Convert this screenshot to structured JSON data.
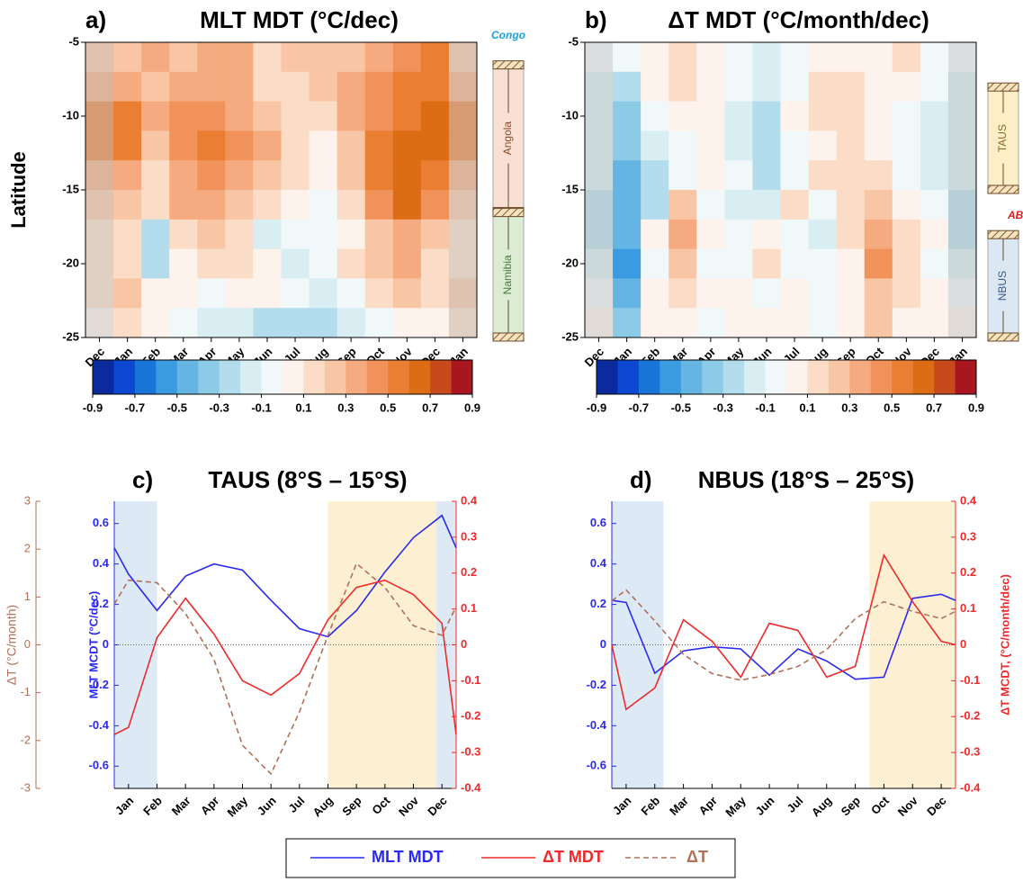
{
  "chart_data": [
    {
      "type": "heatmap",
      "panel_label": "a)",
      "title": "MLT MDT (°C/dec)",
      "y_label": "Latitude",
      "categories": [
        "Dec",
        "Jan",
        "Feb",
        "Mar",
        "Apr",
        "May",
        "Jun",
        "Jul",
        "Aug",
        "Sep",
        "Oct",
        "Nov",
        "Dec",
        "Jan"
      ],
      "y": [
        -6,
        -8,
        -10,
        -12,
        -14,
        -16,
        -18,
        -20,
        -22,
        -24
      ],
      "z": [
        [
          0.2,
          0.2,
          0.3,
          0.2,
          0.3,
          0.3,
          0.1,
          0.2,
          0.2,
          0.2,
          0.3,
          0.4,
          0.5,
          0.2
        ],
        [
          0.3,
          0.3,
          0.2,
          0.3,
          0.3,
          0.3,
          0.1,
          0.1,
          0.2,
          0.3,
          0.4,
          0.5,
          0.5,
          0.3
        ],
        [
          0.5,
          0.5,
          0.3,
          0.4,
          0.4,
          0.3,
          0.2,
          0.1,
          0.1,
          0.3,
          0.4,
          0.5,
          0.6,
          0.5
        ],
        [
          0.5,
          0.5,
          0.2,
          0.4,
          0.5,
          0.4,
          0.3,
          0.1,
          0.0,
          0.2,
          0.5,
          0.6,
          0.6,
          0.5
        ],
        [
          0.3,
          0.3,
          0.1,
          0.3,
          0.4,
          0.3,
          0.2,
          0.1,
          0.0,
          0.2,
          0.5,
          0.6,
          0.5,
          0.3
        ],
        [
          0.2,
          0.2,
          0.1,
          0.3,
          0.3,
          0.2,
          0.1,
          0.0,
          -0.1,
          0.1,
          0.4,
          0.6,
          0.4,
          0.2
        ],
        [
          0.1,
          0.1,
          -0.3,
          0.1,
          0.2,
          0.1,
          -0.2,
          -0.1,
          -0.1,
          0.0,
          0.2,
          0.3,
          0.2,
          0.1
        ],
        [
          0.1,
          0.1,
          -0.3,
          0.0,
          0.1,
          0.1,
          0.0,
          -0.2,
          -0.1,
          0.1,
          0.2,
          0.3,
          0.1,
          0.1
        ],
        [
          0.1,
          0.2,
          0.0,
          0.0,
          -0.1,
          0.0,
          0.0,
          -0.1,
          -0.2,
          -0.1,
          0.1,
          0.2,
          0.1,
          0.2
        ],
        [
          0.0,
          0.1,
          0.0,
          -0.1,
          -0.2,
          -0.2,
          -0.3,
          -0.3,
          -0.3,
          -0.2,
          -0.1,
          0.0,
          0.0,
          0.1
        ]
      ],
      "ylim": [
        -25,
        -5
      ],
      "yticks": [
        -5,
        -10,
        -15,
        -20,
        -25
      ],
      "colorbar": {
        "lim": [
          -0.9,
          0.9
        ],
        "ticks": [
          -0.9,
          -0.7,
          -0.5,
          -0.3,
          -0.1,
          0.1,
          0.3,
          0.5,
          0.7,
          0.9
        ],
        "colors": [
          "#0a2a9e",
          "#0b47d1",
          "#1a75d8",
          "#3a9be0",
          "#64b5e4",
          "#8ccbe6",
          "#b3dcec",
          "#d8eef3",
          "#f1f8fa",
          "#fdf3ec",
          "#fbdcc6",
          "#f9c6a5",
          "#f5ab7f",
          "#f0925a",
          "#ea7e33",
          "#dd6d14",
          "#c7491c",
          "#a8171f"
        ]
      },
      "annotations": [
        "Congo"
      ],
      "regions": [
        {
          "name": "Angola",
          "lat": [
            -6.5,
            -16.5
          ],
          "color": "#f9e0d4",
          "text_color": "#8a4a2a"
        },
        {
          "name": "Namibia",
          "lat": [
            -16.5,
            -25
          ],
          "color": "#dcebd3",
          "text_color": "#4a7a3a"
        }
      ]
    },
    {
      "type": "heatmap",
      "panel_label": "b)",
      "title": "ΔT MDT (°C/month/dec)",
      "categories": [
        "Dec",
        "Jan",
        "Feb",
        "Mar",
        "Apr",
        "May",
        "Jun",
        "Jul",
        "Aug",
        "Sep",
        "Oct",
        "Nov",
        "Dec",
        "Jan"
      ],
      "y": [
        -6,
        -8,
        -10,
        -12,
        -14,
        -16,
        -18,
        -20,
        -22,
        -24
      ],
      "z": [
        [
          -0.1,
          -0.1,
          0.0,
          0.1,
          0.0,
          -0.1,
          -0.2,
          -0.1,
          0.0,
          0.0,
          0.0,
          0.1,
          -0.1,
          -0.1
        ],
        [
          -0.2,
          -0.3,
          0.0,
          0.1,
          0.0,
          -0.1,
          -0.2,
          -0.1,
          0.1,
          0.1,
          0.0,
          0.0,
          -0.1,
          -0.2
        ],
        [
          -0.2,
          -0.4,
          -0.1,
          0.0,
          0.0,
          -0.2,
          -0.3,
          0.0,
          0.1,
          0.1,
          0.0,
          -0.1,
          -0.2,
          -0.2
        ],
        [
          -0.2,
          -0.4,
          -0.2,
          -0.1,
          0.0,
          -0.2,
          -0.3,
          -0.1,
          0.0,
          0.1,
          0.0,
          -0.1,
          -0.2,
          -0.2
        ],
        [
          -0.2,
          -0.5,
          -0.3,
          -0.1,
          0.0,
          -0.1,
          -0.3,
          -0.1,
          0.1,
          0.1,
          0.1,
          -0.1,
          -0.2,
          -0.2
        ],
        [
          -0.3,
          -0.5,
          -0.3,
          0.2,
          -0.1,
          -0.2,
          -0.2,
          0.1,
          -0.1,
          0.1,
          0.2,
          0.0,
          -0.1,
          -0.3
        ],
        [
          -0.3,
          -0.5,
          0.0,
          0.3,
          0.0,
          -0.1,
          0.0,
          -0.1,
          -0.2,
          0.1,
          0.3,
          0.1,
          0.0,
          -0.3
        ],
        [
          -0.2,
          -0.6,
          -0.1,
          0.2,
          -0.1,
          -0.1,
          0.1,
          -0.1,
          -0.1,
          0.0,
          0.4,
          0.1,
          -0.1,
          -0.2
        ],
        [
          -0.1,
          -0.5,
          0.0,
          0.1,
          0.0,
          0.0,
          -0.1,
          0.0,
          -0.1,
          0.0,
          0.2,
          0.1,
          0.0,
          -0.1
        ],
        [
          0.0,
          -0.4,
          0.0,
          0.0,
          -0.1,
          0.0,
          0.0,
          0.0,
          -0.1,
          0.0,
          0.2,
          0.0,
          0.0,
          0.0
        ]
      ],
      "ylim": [
        -25,
        -5
      ],
      "yticks": [
        -5,
        -10,
        -15,
        -20,
        -25
      ],
      "colorbar": {
        "lim": [
          -0.9,
          0.9
        ],
        "ticks": [
          -0.9,
          -0.7,
          -0.5,
          -0.3,
          -0.1,
          0.1,
          0.3,
          0.5,
          0.7,
          0.9
        ],
        "colors": [
          "#0a2a9e",
          "#0b47d1",
          "#1a75d8",
          "#3a9be0",
          "#64b5e4",
          "#8ccbe6",
          "#b3dcec",
          "#d8eef3",
          "#f1f8fa",
          "#fdf3ec",
          "#fbdcc6",
          "#f9c6a5",
          "#f5ab7f",
          "#f0925a",
          "#ea7e33",
          "#dd6d14",
          "#c7491c",
          "#a8171f"
        ]
      },
      "annotations": [
        "ABF"
      ],
      "regions": [
        {
          "name": "TAUS",
          "lat": [
            -8,
            -15
          ],
          "color": "#fcefc8",
          "text_color": "#8a6a2a"
        },
        {
          "name": "NBUS",
          "lat": [
            -18,
            -25
          ],
          "color": "#dbe7f3",
          "text_color": "#3a5a8a"
        }
      ]
    },
    {
      "type": "line",
      "panel_label": "c)",
      "title": "TAUS (8°S – 15°S)",
      "y_label": "MLT MCDT (°C/dec)",
      "y3_label": "ΔT (°C/month)",
      "x": [
        0.5,
        1,
        2,
        3,
        4,
        5,
        6,
        7,
        8,
        9,
        10,
        11,
        12,
        12.5
      ],
      "xlim": [
        0.5,
        12.5
      ],
      "xticks": [
        {
          "value": 1,
          "label": "Jan"
        },
        {
          "value": 2,
          "label": "Feb"
        },
        {
          "value": 3,
          "label": "Mar"
        },
        {
          "value": 4,
          "label": "Apr"
        },
        {
          "value": 5,
          "label": "May"
        },
        {
          "value": 6,
          "label": "Jun"
        },
        {
          "value": 7,
          "label": "Jul"
        },
        {
          "value": 8,
          "label": "Aug"
        },
        {
          "value": 9,
          "label": "Sep"
        },
        {
          "value": 10,
          "label": "Oct"
        },
        {
          "value": 11,
          "label": "Nov"
        },
        {
          "value": 12,
          "label": "Dec"
        }
      ],
      "ylim": [
        -0.71,
        0.71
      ],
      "yticks": [
        -0.6,
        -0.4,
        -0.2,
        0,
        0.2,
        0.4,
        0.6
      ],
      "y2lim": [
        -0.4,
        0.4
      ],
      "y2ticks": [
        -0.4,
        -0.3,
        -0.2,
        -0.1,
        0,
        0.1,
        0.2,
        0.3,
        0.4
      ],
      "y3lim": [
        -3,
        3
      ],
      "y3ticks": [
        -3,
        -2,
        -1,
        0,
        1,
        2,
        3
      ],
      "shaded": [
        {
          "range": [
            0.5,
            2
          ],
          "color": "#dde9f5"
        },
        {
          "range": [
            8,
            11.8
          ],
          "color": "#fdf0d2"
        },
        {
          "range": [
            11.8,
            12.5
          ],
          "color": "#dde9f5"
        }
      ],
      "series": [
        {
          "name": "MLT MDT",
          "color": "#2a2aee",
          "values": [
            0.48,
            0.35,
            0.17,
            0.34,
            0.4,
            0.37,
            0.22,
            0.08,
            0.04,
            0.17,
            0.36,
            0.53,
            0.64,
            0.48
          ]
        },
        {
          "name": "ΔT MDT",
          "color": "#ee2a2a",
          "axis": "y2",
          "values": [
            -0.25,
            -0.23,
            0.02,
            0.13,
            0.03,
            -0.1,
            -0.14,
            -0.08,
            0.07,
            0.16,
            0.18,
            0.14,
            0.06,
            -0.25
          ]
        },
        {
          "name": "ΔT",
          "color": "#b0705a",
          "axis": "y3",
          "dash": true,
          "values": [
            0.85,
            1.35,
            1.3,
            0.65,
            -0.3,
            -2.1,
            -2.7,
            -1.4,
            0.2,
            1.7,
            1.2,
            0.4,
            0.2,
            0.8
          ]
        }
      ]
    },
    {
      "type": "line",
      "panel_label": "d)",
      "title": "NBUS (18°S – 25°S)",
      "y2_label": "ΔT MCDT, (°C/month/dec)",
      "x": [
        0.5,
        1,
        2,
        3,
        4,
        5,
        6,
        7,
        8,
        9,
        10,
        11,
        12,
        12.5
      ],
      "xlim": [
        0.5,
        12.5
      ],
      "xticks": [
        {
          "value": 1,
          "label": "Jan"
        },
        {
          "value": 2,
          "label": "Feb"
        },
        {
          "value": 3,
          "label": "Mar"
        },
        {
          "value": 4,
          "label": "Apr"
        },
        {
          "value": 5,
          "label": "May"
        },
        {
          "value": 6,
          "label": "Jun"
        },
        {
          "value": 7,
          "label": "Jul"
        },
        {
          "value": 8,
          "label": "Aug"
        },
        {
          "value": 9,
          "label": "Sep"
        },
        {
          "value": 10,
          "label": "Oct"
        },
        {
          "value": 11,
          "label": "Nov"
        },
        {
          "value": 12,
          "label": "Dec"
        }
      ],
      "ylim": [
        -0.71,
        0.71
      ],
      "yticks": [
        -0.6,
        -0.4,
        -0.2,
        0,
        0.2,
        0.4,
        0.6
      ],
      "y2lim": [
        -0.4,
        0.4
      ],
      "y2ticks": [
        -0.4,
        -0.3,
        -0.2,
        -0.1,
        0,
        0.1,
        0.2,
        0.3,
        0.4
      ],
      "y3lim": [
        -3,
        3
      ],
      "shaded": [
        {
          "range": [
            0.5,
            2.3
          ],
          "color": "#dde9f5"
        },
        {
          "range": [
            9.5,
            12.5
          ],
          "color": "#fdf0d2"
        }
      ],
      "series": [
        {
          "name": "MLT MDT",
          "color": "#2a2aee",
          "values": [
            0.22,
            0.21,
            -0.14,
            -0.03,
            -0.01,
            -0.02,
            -0.15,
            -0.02,
            -0.08,
            -0.17,
            -0.16,
            0.23,
            0.25,
            0.22
          ]
        },
        {
          "name": "ΔT MDT",
          "color": "#ee2a2a",
          "axis": "y2",
          "values": [
            0.0,
            -0.18,
            -0.12,
            0.07,
            0.01,
            -0.09,
            0.06,
            0.04,
            -0.09,
            -0.06,
            0.25,
            0.12,
            0.01,
            0.0
          ]
        },
        {
          "name": "ΔT",
          "color": "#b0705a",
          "axis": "y3",
          "dash": true,
          "values": [
            0.92,
            1.15,
            0.5,
            -0.2,
            -0.6,
            -0.74,
            -0.62,
            -0.45,
            -0.1,
            0.55,
            0.9,
            0.7,
            0.55,
            0.7
          ]
        }
      ]
    }
  ]
}
